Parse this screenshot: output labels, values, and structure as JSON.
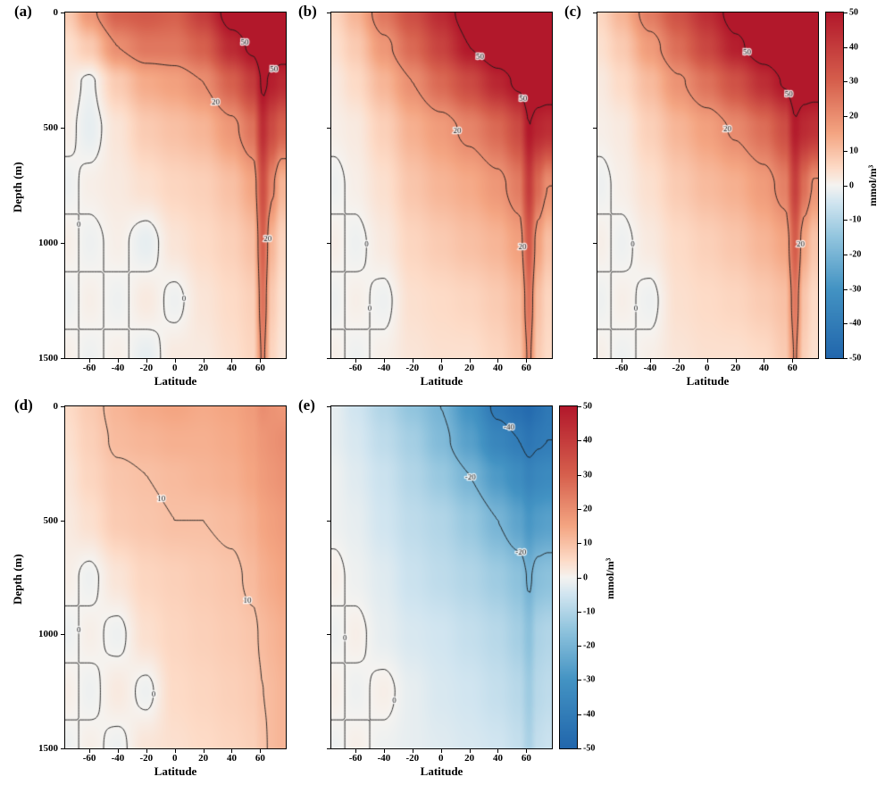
{
  "figure": {
    "axes": {
      "x_label": "Latitude",
      "y_label": "Depth (m)",
      "x_ticks": [
        -60,
        -40,
        -20,
        0,
        20,
        40,
        60
      ],
      "y_ticks": [
        0,
        500,
        1000,
        1500
      ],
      "lat_range": [
        -77,
        78
      ],
      "depth_range": [
        0,
        1500
      ]
    },
    "colorbar": {
      "unit_label": "mmol/m³",
      "vmin": -50,
      "vmax": 50,
      "ticks": [
        50,
        40,
        30,
        20,
        10,
        0,
        -10,
        -20,
        -30,
        -40,
        -50
      ]
    },
    "colormap": {
      "stops": [
        {
          "t": -1.0,
          "color": "#2166ac"
        },
        {
          "t": -0.6,
          "color": "#4393c3"
        },
        {
          "t": -0.3,
          "color": "#92c5de"
        },
        {
          "t": -0.1,
          "color": "#d1e5f0"
        },
        {
          "t": 0.0,
          "color": "#f5f3f0"
        },
        {
          "t": 0.1,
          "color": "#fddbc7"
        },
        {
          "t": 0.3,
          "color": "#f4a582"
        },
        {
          "t": 0.6,
          "color": "#d6604d"
        },
        {
          "t": 1.0,
          "color": "#b2182b"
        }
      ]
    },
    "contour_color": "#1a1a1a",
    "background": "#ffffff"
  },
  "chart_data": [
    {
      "type": "heatmap",
      "panel": "(a)",
      "xlabel": "Latitude",
      "ylabel": "Depth (m)",
      "units": "mmol/m³",
      "lat": [
        -75,
        -60,
        -40,
        -20,
        0,
        20,
        40,
        55,
        62,
        68,
        75
      ],
      "depth": [
        0,
        150,
        300,
        500,
        750,
        1000,
        1250,
        1500
      ],
      "values": [
        [
          8,
          18,
          30,
          32,
          30,
          40,
          55,
          58,
          62,
          62,
          60
        ],
        [
          4,
          8,
          20,
          25,
          25,
          30,
          45,
          52,
          58,
          56,
          55
        ],
        [
          2,
          -1,
          8,
          14,
          16,
          20,
          30,
          40,
          52,
          48,
          45
        ],
        [
          1,
          -2,
          3,
          8,
          10,
          12,
          18,
          26,
          44,
          36,
          30
        ],
        [
          -1,
          1,
          2,
          4,
          6,
          7,
          10,
          15,
          35,
          22,
          12
        ],
        [
          1,
          -1,
          1,
          -2,
          3,
          5,
          7,
          10,
          30,
          12,
          6
        ],
        [
          -1,
          1,
          -1,
          2,
          -1,
          3,
          5,
          7,
          26,
          8,
          4
        ],
        [
          1,
          -1,
          1,
          -2,
          2,
          2,
          4,
          6,
          22,
          6,
          3
        ]
      ],
      "contour_levels": [
        0,
        20,
        50
      ]
    },
    {
      "type": "heatmap",
      "panel": "(b)",
      "xlabel": "Latitude",
      "ylabel": "",
      "units": "mmol/m³",
      "lat": [
        -75,
        -60,
        -40,
        -20,
        0,
        20,
        40,
        55,
        62,
        68,
        75
      ],
      "depth": [
        0,
        150,
        300,
        500,
        750,
        1000,
        1250,
        1500
      ],
      "values": [
        [
          6,
          12,
          25,
          35,
          45,
          55,
          62,
          64,
          66,
          65,
          65
        ],
        [
          4,
          8,
          18,
          28,
          38,
          50,
          58,
          61,
          63,
          62,
          62
        ],
        [
          2,
          5,
          12,
          20,
          28,
          36,
          46,
          52,
          58,
          56,
          56
        ],
        [
          1,
          2,
          7,
          13,
          17,
          22,
          28,
          36,
          50,
          46,
          44
        ],
        [
          -1,
          1,
          4,
          9,
          12,
          14,
          18,
          24,
          40,
          28,
          20
        ],
        [
          1,
          -1,
          2,
          6,
          8,
          10,
          12,
          16,
          32,
          16,
          10
        ],
        [
          -1,
          1,
          -1,
          4,
          5,
          6,
          8,
          11,
          26,
          10,
          6
        ],
        [
          1,
          -1,
          1,
          3,
          4,
          4,
          6,
          9,
          22,
          8,
          5
        ]
      ],
      "contour_levels": [
        0,
        20,
        50
      ]
    },
    {
      "type": "heatmap",
      "panel": "(c)",
      "xlabel": "Latitude",
      "ylabel": "",
      "units": "mmol/m³",
      "lat": [
        -75,
        -60,
        -40,
        -20,
        0,
        20,
        40,
        55,
        62,
        68,
        75
      ],
      "depth": [
        0,
        150,
        300,
        500,
        750,
        1000,
        1250,
        1500
      ],
      "values": [
        [
          6,
          12,
          24,
          34,
          44,
          54,
          61,
          63,
          66,
          65,
          65
        ],
        [
          4,
          8,
          17,
          27,
          37,
          48,
          56,
          60,
          63,
          62,
          61
        ],
        [
          2,
          5,
          11,
          19,
          26,
          34,
          44,
          51,
          57,
          55,
          55
        ],
        [
          1,
          2,
          7,
          12,
          16,
          21,
          27,
          35,
          49,
          45,
          43
        ],
        [
          -1,
          1,
          4,
          8,
          11,
          13,
          17,
          23,
          39,
          27,
          19
        ],
        [
          1,
          -1,
          2,
          5,
          7,
          9,
          12,
          15,
          31,
          15,
          9
        ],
        [
          -1,
          1,
          -1,
          4,
          5,
          6,
          8,
          10,
          25,
          9,
          5
        ],
        [
          1,
          -1,
          1,
          3,
          4,
          4,
          5,
          8,
          21,
          7,
          4
        ]
      ],
      "contour_levels": [
        0,
        20,
        50
      ]
    },
    {
      "type": "heatmap",
      "panel": "(d)",
      "xlabel": "Latitude",
      "ylabel": "Depth (m)",
      "units": "mmol/m³",
      "lat": [
        -75,
        -60,
        -40,
        -20,
        0,
        20,
        40,
        55,
        62,
        68,
        75
      ],
      "depth": [
        0,
        150,
        300,
        500,
        750,
        1000,
        1250,
        1500
      ],
      "values": [
        [
          5,
          8,
          12,
          14,
          15,
          14,
          15,
          17,
          20,
          19,
          18
        ],
        [
          4,
          7,
          11,
          12,
          13,
          13,
          14,
          16,
          18,
          19,
          20
        ],
        [
          3,
          6,
          9,
          10,
          11,
          12,
          13,
          15,
          17,
          18,
          19
        ],
        [
          2,
          4,
          8,
          9,
          10,
          10,
          11,
          13,
          15,
          16,
          17
        ],
        [
          1,
          -1,
          3,
          6,
          7,
          8,
          9,
          11,
          13,
          14,
          15
        ],
        [
          -1,
          1,
          -1,
          4,
          6,
          7,
          8,
          9,
          11,
          12,
          13
        ],
        [
          1,
          -1,
          2,
          -1,
          5,
          6,
          7,
          8,
          10,
          11,
          12
        ],
        [
          -1,
          1,
          -1,
          3,
          4,
          5,
          6,
          7,
          9,
          11,
          12
        ]
      ],
      "contour_levels": [
        0,
        10,
        20
      ]
    },
    {
      "type": "heatmap",
      "panel": "(e)",
      "xlabel": "Latitude",
      "ylabel": "",
      "units": "mmol/m³",
      "lat": [
        -75,
        -60,
        -40,
        -20,
        0,
        20,
        40,
        55,
        62,
        68,
        75
      ],
      "depth": [
        0,
        150,
        300,
        500,
        750,
        1000,
        1250,
        1500
      ],
      "values": [
        [
          -2,
          -5,
          -10,
          -15,
          -20,
          -30,
          -42,
          -46,
          -48,
          -45,
          -42
        ],
        [
          -2,
          -4,
          -8,
          -12,
          -18,
          -26,
          -36,
          -40,
          -43,
          -41,
          -40
        ],
        [
          -1,
          -3,
          -6,
          -10,
          -14,
          -20,
          -28,
          -33,
          -37,
          -35,
          -34
        ],
        [
          -1,
          -2,
          -5,
          -8,
          -10,
          -14,
          -20,
          -25,
          -29,
          -27,
          -26
        ],
        [
          1,
          -1,
          -3,
          -6,
          -8,
          -10,
          -13,
          -16,
          -21,
          -17,
          -16
        ],
        [
          -1,
          1,
          -2,
          -4,
          -5,
          -7,
          -9,
          -12,
          -16,
          -11,
          -10
        ],
        [
          1,
          -1,
          1,
          -2,
          -4,
          -5,
          -7,
          -9,
          -13,
          -9,
          -8
        ],
        [
          -1,
          1,
          -1,
          -2,
          -3,
          -4,
          -5,
          -7,
          -11,
          -7,
          -6
        ]
      ],
      "contour_levels": [
        0,
        -20,
        -40
      ]
    }
  ]
}
